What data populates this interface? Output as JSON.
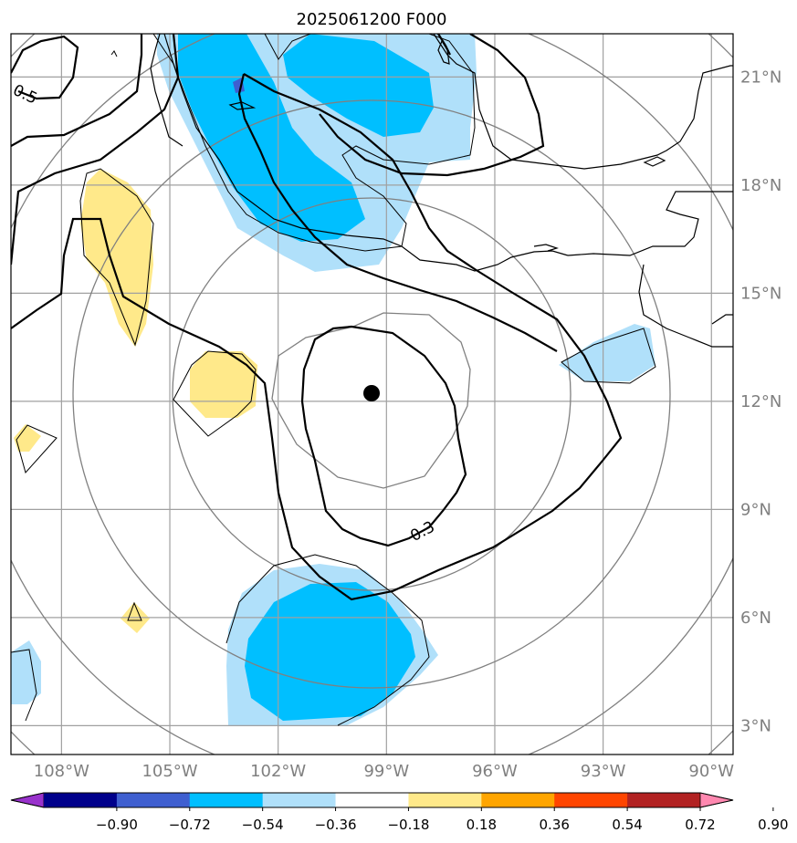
{
  "chart_data": {
    "type": "map",
    "title": "2025061200 F000",
    "lon_ticks": [
      {
        "value": -108,
        "label": "108°W"
      },
      {
        "value": -105,
        "label": "105°W"
      },
      {
        "value": -102,
        "label": "102°W"
      },
      {
        "value": -99,
        "label": "99°W"
      },
      {
        "value": -96,
        "label": "96°W"
      },
      {
        "value": -93,
        "label": "93°W"
      },
      {
        "value": -90,
        "label": "90°W"
      }
    ],
    "lat_ticks": [
      {
        "value": 3,
        "label": "3°N"
      },
      {
        "value": 6,
        "label": "6°N"
      },
      {
        "value": 9,
        "label": "9°N"
      },
      {
        "value": 12,
        "label": "12°N"
      },
      {
        "value": 15,
        "label": "15°N"
      },
      {
        "value": 18,
        "label": "18°N"
      },
      {
        "value": 21,
        "label": "21°N"
      }
    ],
    "lon_range": [
      -109.4,
      -89.4
    ],
    "lat_range": [
      2.2,
      22.2
    ],
    "center": {
      "lon": -99.4,
      "lat": 12.2
    },
    "contour_labels": [
      {
        "text": "0.5",
        "lon": -108.9,
        "lat": 20.8
      },
      {
        "text": "0.3",
        "lon": -98.0,
        "lat": 8.6
      }
    ],
    "colorbar": {
      "levels": [
        "−0.90",
        "−0.72",
        "−0.54",
        "−0.36",
        "−0.18",
        "0.18",
        "0.36",
        "0.54",
        "0.72",
        "0.90"
      ],
      "colors": [
        "#9932cc",
        "#00008b",
        "#3f5fd0",
        "#00bfff",
        "#b0e0fa",
        "#ffffff",
        "#ffe98a",
        "#ffa500",
        "#ff4500",
        "#b22222",
        "#ff88b0"
      ],
      "extend": "both"
    },
    "grid": true
  }
}
